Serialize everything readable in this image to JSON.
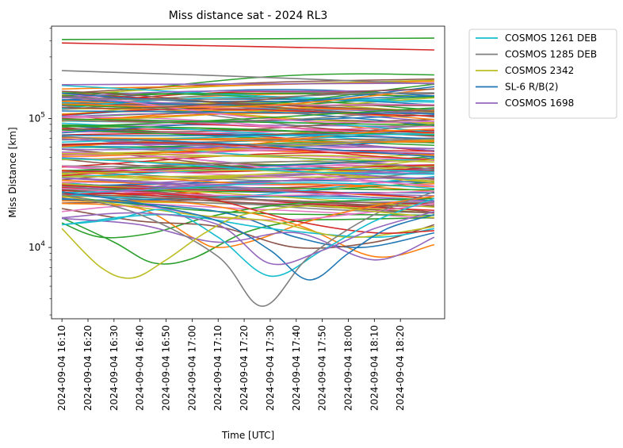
{
  "chart_data": {
    "type": "line",
    "title": "Miss distance sat - 2024 RL3",
    "xlabel": "Time [UTC]",
    "ylabel": "Miss Distance [km]",
    "yscale": "log",
    "ylim": [
      2800,
      520000
    ],
    "xlim": [
      "2024-09-04 16:06",
      "2024-09-04 18:37"
    ],
    "x_start": "2024-09-04 16:10",
    "x_end": "2024-09-04 18:33",
    "x_ticks": [
      "2024-09-04 16:10",
      "2024-09-04 16:20",
      "2024-09-04 16:30",
      "2024-09-04 16:40",
      "2024-09-04 16:50",
      "2024-09-04 17:00",
      "2024-09-04 17:10",
      "2024-09-04 17:20",
      "2024-09-04 17:30",
      "2024-09-04 17:40",
      "2024-09-04 17:50",
      "2024-09-04 18:00",
      "2024-09-04 18:10",
      "2024-09-04 18:20"
    ],
    "y_ticks": [
      {
        "value": 10000,
        "label": "10",
        "exp": "4"
      },
      {
        "value": 100000,
        "label": "10",
        "exp": "5"
      }
    ],
    "legend_position": "upper right, outside the axes",
    "grid": false,
    "series": [
      {
        "name": "COSMOS 1261 DEB",
        "color": "#17becf",
        "points": [
          [
            "2024-09-04 16:10",
            15000
          ],
          [
            "2024-09-04 16:30",
            16500
          ],
          [
            "2024-09-04 16:50",
            19500
          ],
          [
            "2024-09-04 17:10",
            12000
          ],
          [
            "2024-09-04 17:30",
            6000
          ],
          [
            "2024-09-04 17:50",
            9500
          ],
          [
            "2024-09-04 18:10",
            16000
          ],
          [
            "2024-09-04 18:33",
            24000
          ]
        ]
      },
      {
        "name": "COSMOS 1285 DEB",
        "color": "#7f7f7f",
        "points": [
          [
            "2024-09-04 16:10",
            26000
          ],
          [
            "2024-09-04 16:40",
            18000
          ],
          [
            "2024-09-04 17:10",
            8500
          ],
          [
            "2024-09-04 17:27",
            3500
          ],
          [
            "2024-09-04 17:45",
            8500
          ],
          [
            "2024-09-04 18:10",
            18000
          ],
          [
            "2024-09-04 18:33",
            27000
          ]
        ]
      },
      {
        "name": "COSMOS 2342",
        "color": "#bcbd22",
        "points": [
          [
            "2024-09-04 16:10",
            14000
          ],
          [
            "2024-09-04 16:25",
            7000
          ],
          [
            "2024-09-04 16:37",
            5800
          ],
          [
            "2024-09-04 16:50",
            8000
          ],
          [
            "2024-09-04 17:05",
            13000
          ],
          [
            "2024-09-04 17:20",
            18000
          ],
          [
            "2024-09-04 17:45",
            21000
          ],
          [
            "2024-09-04 18:10",
            19000
          ],
          [
            "2024-09-04 18:33",
            17000
          ]
        ]
      },
      {
        "name": "SL-6 R/B(2)",
        "color": "#1f77b4",
        "points": [
          [
            "2024-09-04 16:10",
            27000
          ],
          [
            "2024-09-04 16:40",
            22000
          ],
          [
            "2024-09-04 17:10",
            16000
          ],
          [
            "2024-09-04 17:30",
            9500
          ],
          [
            "2024-09-04 17:45",
            5600
          ],
          [
            "2024-09-04 18:00",
            9000
          ],
          [
            "2024-09-04 18:15",
            14000
          ],
          [
            "2024-09-04 18:33",
            18000
          ]
        ]
      },
      {
        "name": "COSMOS 1698",
        "color": "#9467bd",
        "points": [
          [
            "2024-09-04 16:10",
            17000
          ],
          [
            "2024-09-04 16:40",
            18500
          ],
          [
            "2024-09-04 17:10",
            15000
          ],
          [
            "2024-09-04 17:30",
            7500
          ],
          [
            "2024-09-04 17:50",
            9500
          ],
          [
            "2024-09-04 18:10",
            14000
          ],
          [
            "2024-09-04 18:33",
            19000
          ]
        ]
      },
      {
        "color": "#2ca02c",
        "points": [
          [
            "2024-09-04 16:10",
            410000
          ],
          [
            "2024-09-04 18:33",
            420000
          ]
        ]
      },
      {
        "color": "#d62728",
        "points": [
          [
            "2024-09-04 16:10",
            385000
          ],
          [
            "2024-09-04 18:33",
            340000
          ]
        ]
      },
      {
        "color": "#7f7f7f",
        "points": [
          [
            "2024-09-04 16:10",
            235000
          ],
          [
            "2024-09-04 17:10",
            215000
          ],
          [
            "2024-09-04 18:33",
            185000
          ]
        ]
      },
      {
        "color": "#9467bd",
        "points": [
          [
            "2024-09-04 16:10",
            183000
          ],
          [
            "2024-09-04 18:33",
            188000
          ]
        ]
      },
      {
        "color": "#2ca02c",
        "points": [
          [
            "2024-09-04 16:10",
            15500
          ],
          [
            "2024-09-04 16:25",
            12000
          ],
          [
            "2024-09-04 16:45",
            13000
          ],
          [
            "2024-09-04 17:05",
            17000
          ],
          [
            "2024-09-04 17:30",
            21000
          ],
          [
            "2024-09-04 18:00",
            23000
          ],
          [
            "2024-09-04 18:33",
            24000
          ]
        ]
      },
      {
        "color": "#2ca02c",
        "points": [
          [
            "2024-09-04 16:10",
            17000
          ],
          [
            "2024-09-04 16:30",
            11000
          ],
          [
            "2024-09-04 16:45",
            7600
          ],
          [
            "2024-09-04 17:00",
            8200
          ],
          [
            "2024-09-04 17:20",
            13000
          ],
          [
            "2024-09-04 17:40",
            16000
          ],
          [
            "2024-09-04 18:00",
            16500
          ],
          [
            "2024-09-04 18:33",
            17000
          ]
        ]
      },
      {
        "color": "#ff7f0e",
        "points": [
          [
            "2024-09-04 16:10",
            22000
          ],
          [
            "2024-09-04 16:40",
            20000
          ],
          [
            "2024-09-04 17:00",
            12000
          ],
          [
            "2024-09-04 17:10",
            10000
          ],
          [
            "2024-09-04 17:25",
            11500
          ],
          [
            "2024-09-04 17:45",
            16000
          ],
          [
            "2024-09-04 18:10",
            21000
          ],
          [
            "2024-09-04 18:33",
            25000
          ]
        ]
      },
      {
        "color": "#ff7f0e",
        "points": [
          [
            "2024-09-04 16:10",
            23000
          ],
          [
            "2024-09-04 17:00",
            22000
          ],
          [
            "2024-09-04 17:40",
            15000
          ],
          [
            "2024-09-04 18:10",
            8500
          ],
          [
            "2024-09-04 18:33",
            10500
          ]
        ]
      },
      {
        "color": "#1f77b4",
        "points": [
          [
            "2024-09-04 16:10",
            24000
          ],
          [
            "2024-09-04 17:10",
            19000
          ],
          [
            "2024-09-04 17:40",
            12000
          ],
          [
            "2024-09-04 18:05",
            10000
          ],
          [
            "2024-09-04 18:33",
            13000
          ]
        ]
      },
      {
        "color": "#8c564b",
        "points": [
          [
            "2024-09-04 16:10",
            20000
          ],
          [
            "2024-09-04 16:40",
            16000
          ],
          [
            "2024-09-04 17:10",
            14500
          ],
          [
            "2024-09-04 17:40",
            10000
          ],
          [
            "2024-09-04 18:10",
            11000
          ],
          [
            "2024-09-04 18:33",
            15000
          ]
        ]
      },
      {
        "color": "#e377c2",
        "points": [
          [
            "2024-09-04 16:10",
            19000
          ],
          [
            "2024-09-04 16:40",
            21000
          ],
          [
            "2024-09-04 17:10",
            17000
          ],
          [
            "2024-09-04 17:40",
            16500
          ],
          [
            "2024-09-04 18:10",
            19000
          ],
          [
            "2024-09-04 18:33",
            22000
          ]
        ]
      },
      {
        "color": "#17becf",
        "points": [
          [
            "2024-09-04 16:10",
            15000
          ],
          [
            "2024-09-04 16:50",
            18000
          ],
          [
            "2024-09-04 17:30",
            14000
          ],
          [
            "2024-09-04 18:10",
            12000
          ],
          [
            "2024-09-04 18:33",
            14000
          ]
        ]
      },
      {
        "color": "#bcbd22",
        "points": [
          [
            "2024-09-04 16:10",
            25000
          ],
          [
            "2024-09-04 17:00",
            18000
          ],
          [
            "2024-09-04 17:30",
            16000
          ],
          [
            "2024-09-04 18:00",
            12000
          ],
          [
            "2024-09-04 18:33",
            14500
          ]
        ]
      },
      {
        "color": "#d62728",
        "points": [
          [
            "2024-09-04 16:10",
            26000
          ],
          [
            "2024-09-04 17:00",
            25000
          ],
          [
            "2024-09-04 17:40",
            16000
          ],
          [
            "2024-09-04 18:10",
            13000
          ],
          [
            "2024-09-04 18:33",
            13500
          ]
        ]
      },
      {
        "color": "#9467bd",
        "points": [
          [
            "2024-09-04 16:10",
            16800
          ],
          [
            "2024-09-04 16:40",
            15000
          ],
          [
            "2024-09-04 17:10",
            11000
          ],
          [
            "2024-09-04 17:40",
            13000
          ],
          [
            "2024-09-04 18:10",
            8000
          ],
          [
            "2024-09-04 18:33",
            12000
          ]
        ]
      }
    ],
    "background_bundle": {
      "count": 160,
      "y_range": [
        24000,
        175000
      ],
      "palette": [
        "#1f77b4",
        "#ff7f0e",
        "#2ca02c",
        "#d62728",
        "#9467bd",
        "#8c564b",
        "#e377c2",
        "#7f7f7f",
        "#bcbd22",
        "#17becf"
      ]
    }
  }
}
